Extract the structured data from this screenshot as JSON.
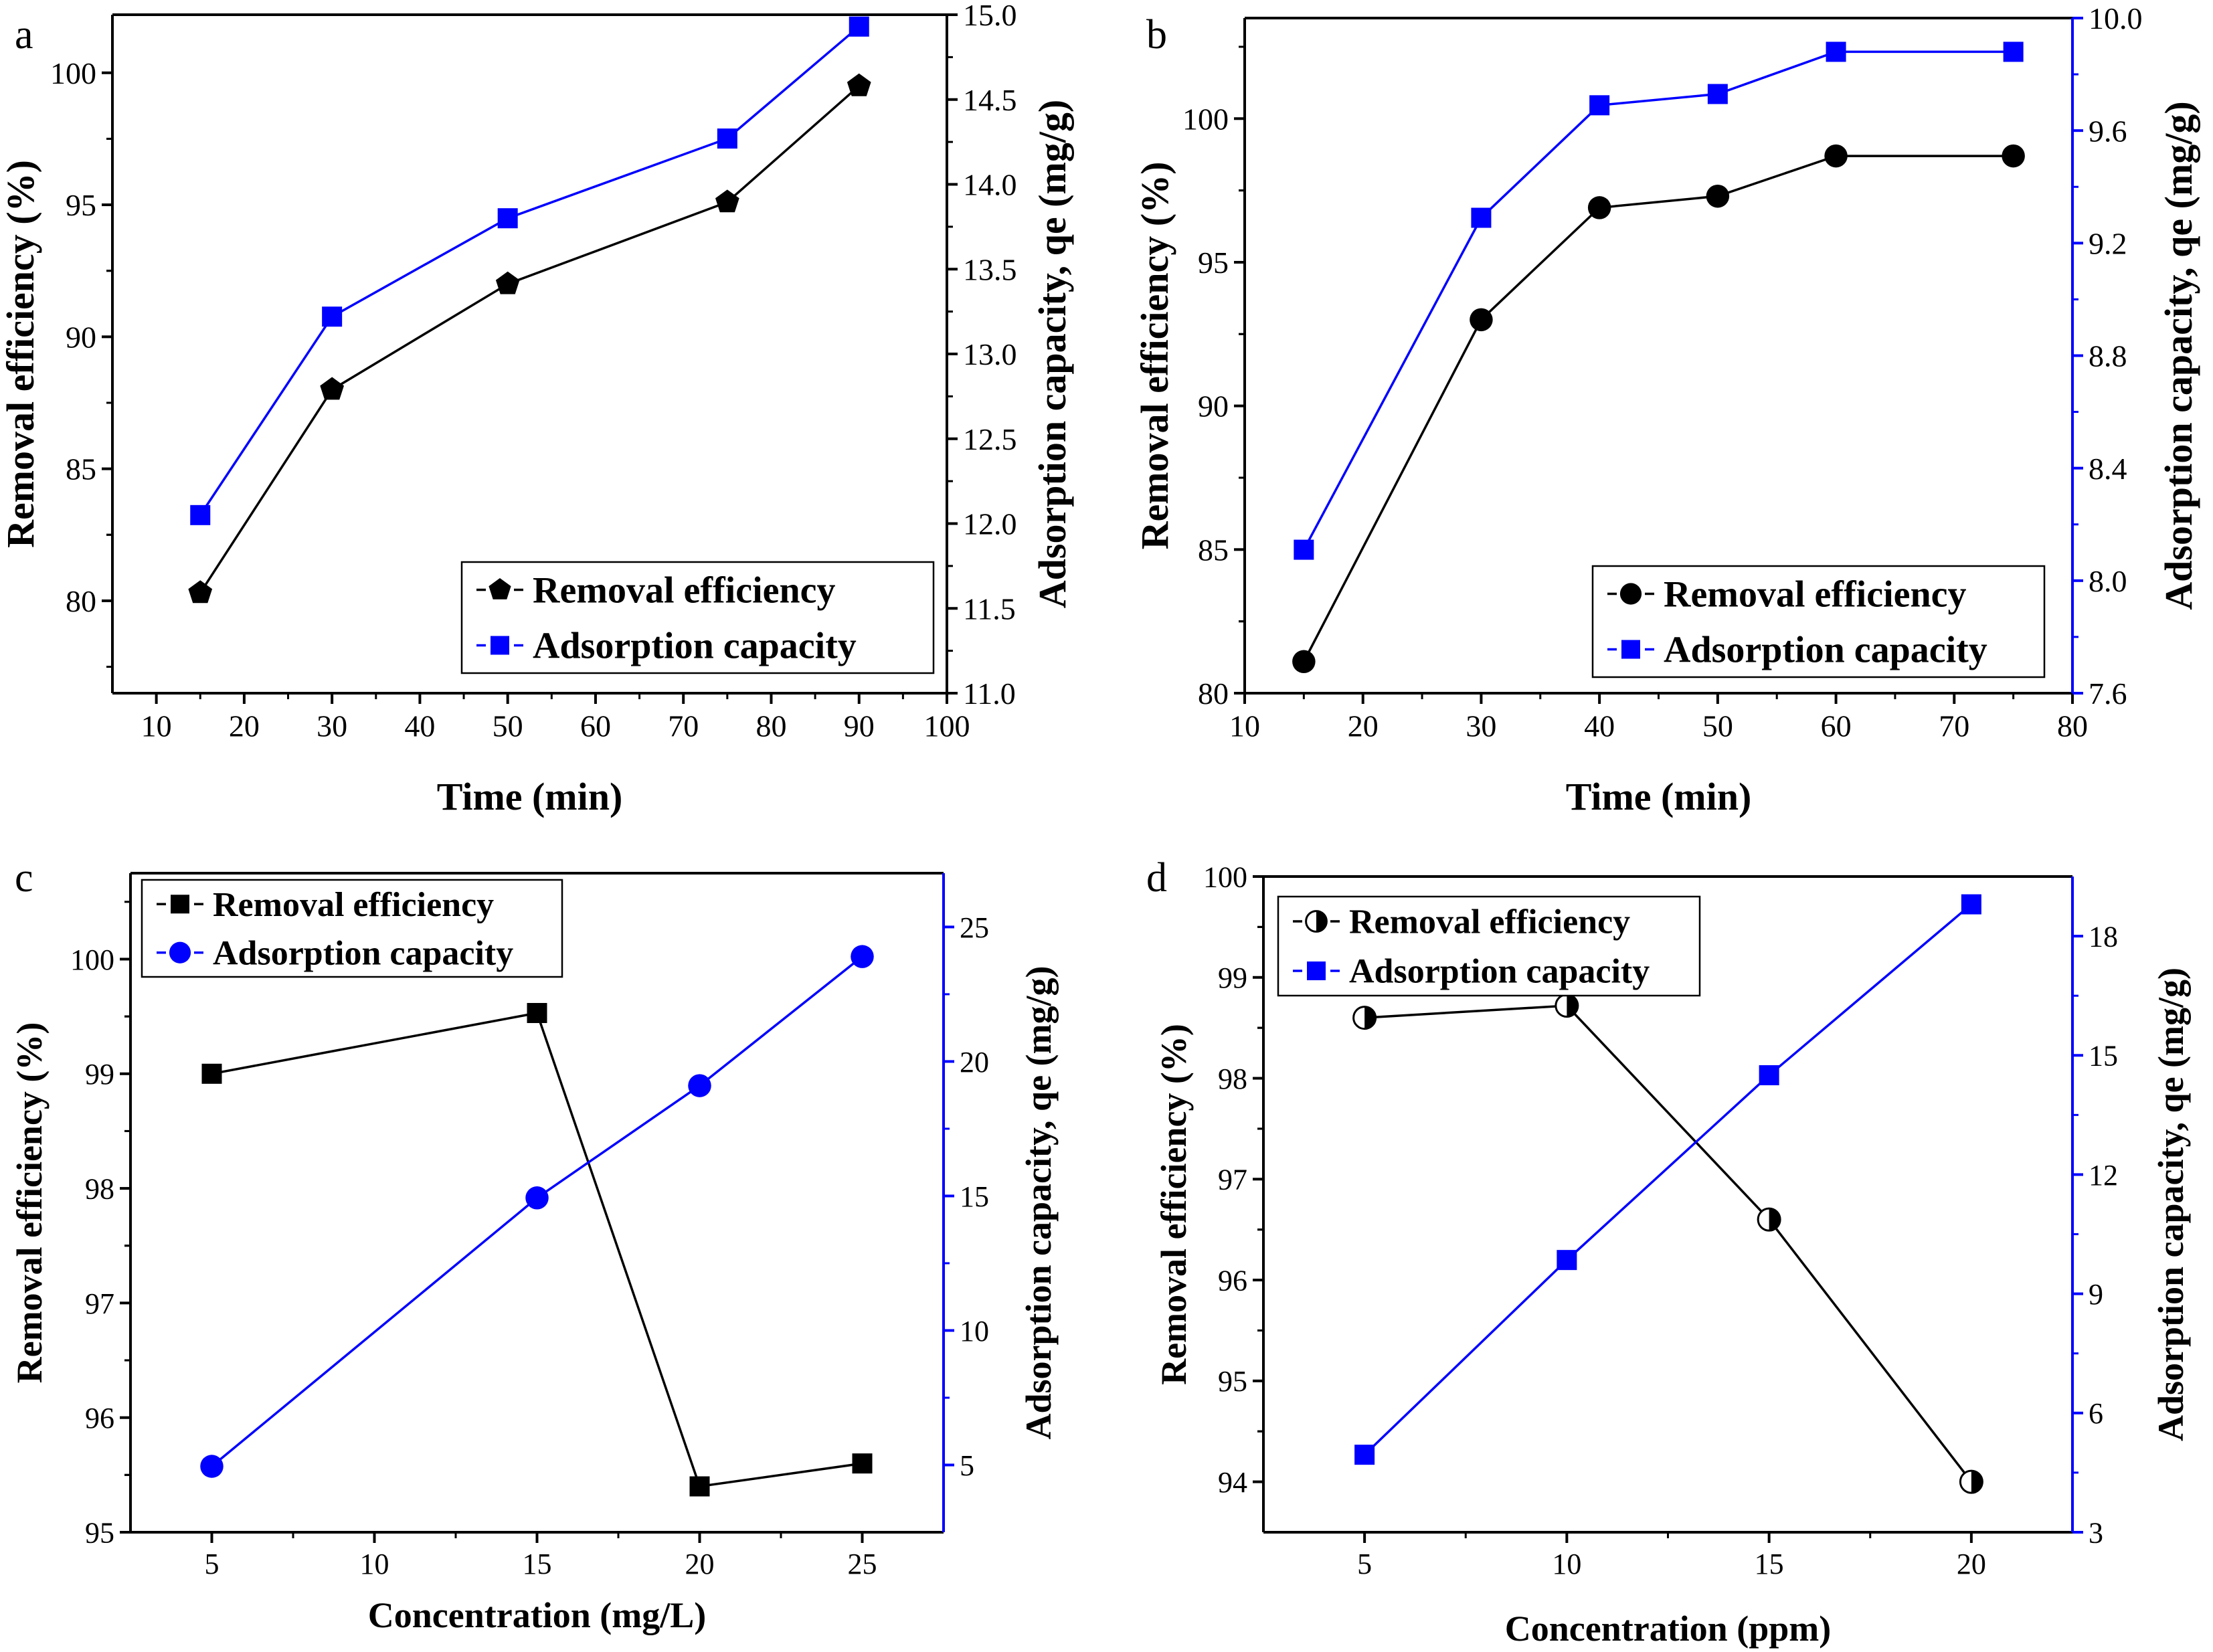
{
  "colors": {
    "black": "#000000",
    "blue": "#0000ff"
  },
  "chart_data": [
    {
      "panel": "a",
      "type": "line",
      "xlabel": "Time (min)",
      "ylabel_left": "Removal efficiency (%)",
      "ylabel_right": "Adsorption capacity, qe (mg/g)",
      "xlim": [
        5,
        100
      ],
      "xticks": [
        10,
        20,
        30,
        40,
        50,
        60,
        70,
        80,
        90,
        100
      ],
      "ylim_left": [
        76.5,
        102.2
      ],
      "yticks_left": [
        80,
        85,
        90,
        95,
        100
      ],
      "ylim_right": [
        11.0,
        15.0
      ],
      "yticks_right": [
        "11.0",
        "11.5",
        "12.0",
        "12.5",
        "13.0",
        "13.5",
        "14.0",
        "14.5",
        "15.0"
      ],
      "legend_position": "bottom-right",
      "series": [
        {
          "name": "Removal efficiency",
          "axis": "left",
          "color": "#000000",
          "marker": "pentagon",
          "x": [
            15,
            30,
            50,
            75,
            90
          ],
          "values": [
            80.3,
            88.0,
            92.0,
            95.1,
            99.5
          ]
        },
        {
          "name": "Adsorption capacity",
          "axis": "right",
          "color": "#0000ff",
          "marker": "square",
          "x": [
            15,
            30,
            50,
            75,
            90
          ],
          "values": [
            12.05,
            13.22,
            13.8,
            14.27,
            14.93
          ]
        }
      ]
    },
    {
      "panel": "b",
      "type": "line",
      "xlabel": "Time (min)",
      "ylabel_left": "Removal efficiency (%)",
      "ylabel_right": "Adsorption capacity, qe (mg/g)",
      "xlim": [
        10,
        80
      ],
      "xticks": [
        10,
        20,
        30,
        40,
        50,
        60,
        70,
        80
      ],
      "ylim_left": [
        80,
        103.5
      ],
      "yticks_left": [
        80,
        85,
        90,
        95,
        100
      ],
      "ylim_right": [
        7.6,
        10.0
      ],
      "yticks_right": [
        "7.6",
        "8.0",
        "8.4",
        "8.8",
        "9.2",
        "9.6",
        "10.0"
      ],
      "legend_position": "bottom-right",
      "series": [
        {
          "name": "Removal efficiency",
          "axis": "left",
          "color": "#000000",
          "marker": "circle",
          "x": [
            15,
            30,
            40,
            50,
            60,
            75
          ],
          "values": [
            81.1,
            93.0,
            96.9,
            97.3,
            98.7,
            98.7
          ]
        },
        {
          "name": "Adsorption capacity",
          "axis": "right",
          "color": "#0000ff",
          "marker": "square",
          "x": [
            15,
            30,
            40,
            50,
            60,
            75
          ],
          "values": [
            8.11,
            9.29,
            9.69,
            9.73,
            9.88,
            9.88
          ]
        }
      ]
    },
    {
      "panel": "c",
      "type": "line",
      "xlabel": "Concentration (mg/L)",
      "ylabel_left": "Removal efficiency (%)",
      "ylabel_right": "Adsorption capacity, qe (mg/g)",
      "xlim": [
        2.5,
        27.5
      ],
      "xticks": [
        5,
        10,
        15,
        20,
        25
      ],
      "ylim_left": [
        95,
        100.75
      ],
      "yticks_left": [
        95,
        96,
        97,
        98,
        99,
        100
      ],
      "ylim_right": [
        2.5,
        27.0
      ],
      "yticks_right": [
        "5",
        "10",
        "15",
        "20",
        "25"
      ],
      "legend_position": "top-left",
      "series": [
        {
          "name": "Removal efficiency",
          "axis": "left",
          "color": "#000000",
          "marker": "square",
          "x": [
            5,
            15,
            20,
            25
          ],
          "values": [
            99.0,
            99.53,
            95.4,
            95.6
          ]
        },
        {
          "name": "Adsorption capacity",
          "axis": "right",
          "color": "#0000ff",
          "marker": "circle",
          "x": [
            5,
            15,
            20,
            25
          ],
          "values": [
            4.95,
            14.93,
            19.1,
            23.9
          ]
        }
      ]
    },
    {
      "panel": "d",
      "type": "line",
      "xlabel": "Concentration (ppm)",
      "ylabel_left": "Removal efficiency (%)",
      "ylabel_right": "Adsorption capacity, qe (mg/g)",
      "xlim": [
        2.5,
        22.5
      ],
      "xticks": [
        5,
        10,
        15,
        20
      ],
      "ylim_left": [
        93.5,
        100
      ],
      "yticks_left": [
        94,
        95,
        96,
        97,
        98,
        99,
        100
      ],
      "ylim_right": [
        3,
        19.5
      ],
      "yticks_right": [
        "3",
        "6",
        "9",
        "12",
        "15",
        "18"
      ],
      "legend_position": "top-left",
      "series": [
        {
          "name": "Removal efficiency",
          "axis": "left",
          "color": "#000000",
          "marker": "half-circle",
          "x": [
            5,
            10,
            15,
            20
          ],
          "values": [
            98.6,
            98.72,
            96.6,
            94.0
          ]
        },
        {
          "name": "Adsorption capacity",
          "axis": "right",
          "color": "#0000ff",
          "marker": "square",
          "x": [
            5,
            10,
            15,
            20
          ],
          "values": [
            4.95,
            9.85,
            14.5,
            18.8
          ]
        }
      ]
    }
  ]
}
